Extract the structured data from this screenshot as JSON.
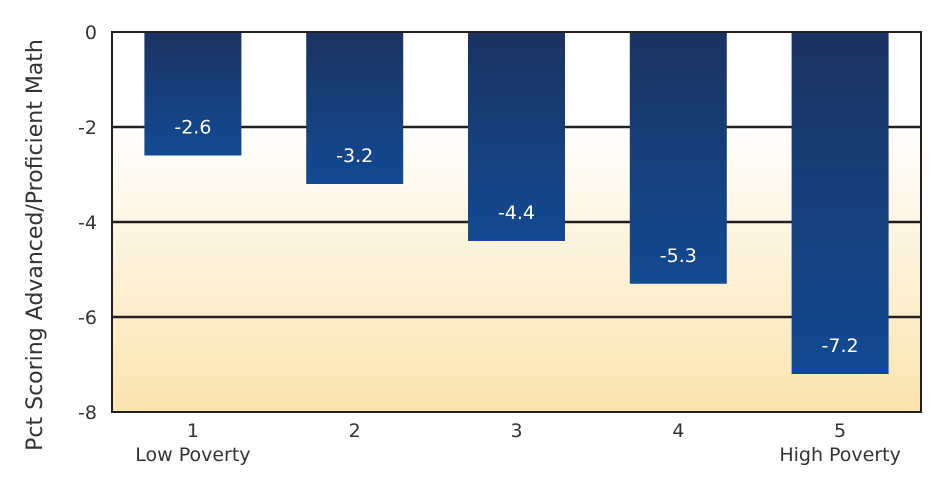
{
  "chart_data": {
    "type": "bar",
    "title": "",
    "xlabel": "",
    "ylabel": "Pct Scoring Advanced/Proficient  Math",
    "categories": [
      "1",
      "2",
      "3",
      "4",
      "5"
    ],
    "category_sublabels": [
      "Low Poverty",
      "",
      "",
      "",
      "High Poverty"
    ],
    "values": [
      -2.6,
      -3.2,
      -4.4,
      -5.3,
      -7.2
    ],
    "data_labels": [
      "-2.6",
      "-3.2",
      "-4.4",
      "-5.3",
      "-7.2"
    ],
    "ylim": [
      -8,
      0
    ],
    "yticks": [
      0,
      -2,
      -4,
      -6,
      -8
    ],
    "ytick_labels": [
      "0",
      "-2",
      "-4",
      "-6",
      "-8"
    ],
    "grid": true,
    "legend": "none",
    "colors": {
      "bar_top": "#1b3361",
      "bar_bottom": "#124a93",
      "background_top": "#ffffff",
      "background_bottom": "#fbe4ae",
      "label_text": "#ffffff"
    }
  }
}
